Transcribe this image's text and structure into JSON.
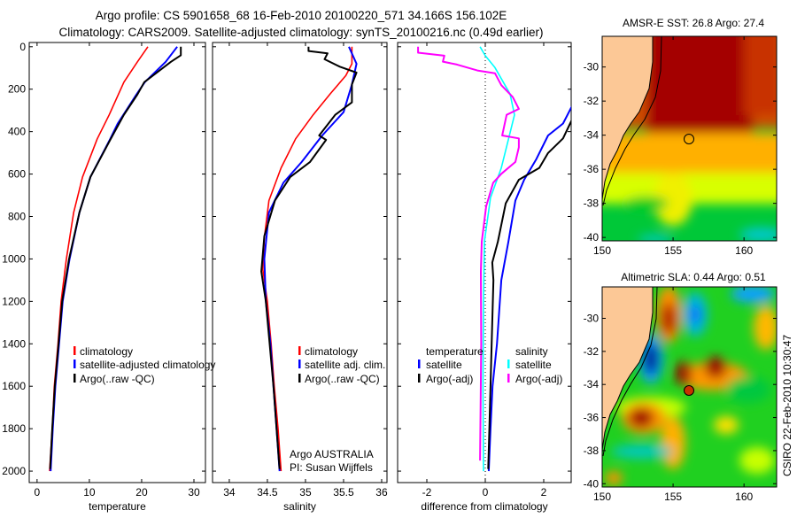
{
  "header": {
    "title_line1": "Argo profile: CS 5901658_68 16-Feb-2010 20100220_571 34.166S 156.102E",
    "title_line2": "Climatology: CARS2009. Satellite-adjusted climatology: synTS_20100216.nc (0.49d earlier)"
  },
  "credit": {
    "line1": "Argo AUSTRALIA",
    "line2": "PI: Susan Wijffels"
  },
  "timestamp": "CSIRO 22-Feb-2010 10:30:47",
  "colors": {
    "climatology": "#ff0000",
    "satellite": "#0000ff",
    "argo": "#000000",
    "sal_satellite": "#00ffff",
    "sal_argo": "#ff00ff",
    "land": "#fcc896"
  },
  "chart_data": [
    {
      "type": "line",
      "id": "temperature",
      "xlabel": "temperature",
      "ylabel": "",
      "xlim": [
        -1.5,
        32.2
      ],
      "ylim": [
        2054,
        -20
      ],
      "xticks": [
        0,
        10,
        20,
        30
      ],
      "xtick_labels": [
        "0",
        "10",
        "20",
        "30"
      ],
      "yticks": [
        0,
        200,
        400,
        600,
        800,
        1000,
        1200,
        1400,
        1600,
        1800,
        2000
      ],
      "ytick_labels": [
        "0",
        "200",
        "400",
        "600",
        "800",
        "1000",
        "1200",
        "1400",
        "1600",
        "1800",
        "2000"
      ],
      "legend": [
        "climatology",
        "satellite-adjusted climatology",
        "Argo(..raw -QC)"
      ],
      "series": [
        {
          "name": "climatology",
          "color": "#ff0000",
          "points": [
            [
              21.2,
              0
            ],
            [
              19.2,
              71
            ],
            [
              16.6,
              167
            ],
            [
              13.8,
              321
            ],
            [
              11.5,
              434
            ],
            [
              8.7,
              614
            ],
            [
              7.0,
              781
            ],
            [
              5.6,
              1002
            ],
            [
              4.6,
              1200
            ],
            [
              4.0,
              1400
            ],
            [
              3.3,
              1600
            ],
            [
              2.9,
              1800
            ],
            [
              2.4,
              2000
            ]
          ]
        },
        {
          "name": "satellite-adjusted climatology",
          "color": "#0000ff",
          "points": [
            [
              26.8,
              0
            ],
            [
              24.6,
              71
            ],
            [
              20.6,
              167
            ],
            [
              19.0,
              225
            ],
            [
              15.4,
              363
            ],
            [
              14.0,
              434
            ],
            [
              10.2,
              614
            ],
            [
              8.1,
              781
            ],
            [
              6.2,
              1002
            ],
            [
              4.9,
              1200
            ],
            [
              4.2,
              1400
            ],
            [
              3.5,
              1600
            ],
            [
              3.0,
              1800
            ],
            [
              2.6,
              2000
            ]
          ]
        },
        {
          "name": "Argo(..raw -QC)",
          "color": "#000000",
          "points": [
            [
              27.5,
              0
            ],
            [
              27.5,
              40
            ],
            [
              25.6,
              71
            ],
            [
              20.5,
              167
            ],
            [
              19.2,
              225
            ],
            [
              16.6,
              321
            ],
            [
              14.1,
              434
            ],
            [
              10.2,
              614
            ],
            [
              8.1,
              781
            ],
            [
              6.1,
              1002
            ],
            [
              4.8,
              1200
            ],
            [
              4.1,
              1400
            ],
            [
              3.4,
              1600
            ],
            [
              2.9,
              1800
            ],
            [
              2.5,
              1990
            ]
          ]
        }
      ]
    },
    {
      "type": "line",
      "id": "salinity",
      "xlabel": "salinity",
      "xlim": [
        33.78,
        36.07
      ],
      "ylim": [
        2054,
        -20
      ],
      "xticks": [
        34,
        34.5,
        35,
        35.5,
        36
      ],
      "xtick_labels": [
        "34",
        "34.5",
        "35",
        "35.5",
        "36"
      ],
      "legend": [
        "climatology",
        "satellite adj. clim.",
        "Argo(..raw -QC)"
      ],
      "series": [
        {
          "name": "climatology",
          "color": "#ff0000",
          "points": [
            [
              35.61,
              0
            ],
            [
              35.61,
              80
            ],
            [
              35.53,
              136
            ],
            [
              35.33,
              220
            ],
            [
              35.1,
              321
            ],
            [
              34.87,
              434
            ],
            [
              34.68,
              571
            ],
            [
              34.52,
              725
            ],
            [
              34.46,
              900
            ],
            [
              34.44,
              1050
            ],
            [
              34.5,
              1200
            ],
            [
              34.55,
              1400
            ],
            [
              34.59,
              1600
            ],
            [
              34.64,
              1800
            ],
            [
              34.68,
              2000
            ]
          ]
        },
        {
          "name": "satellite adj. clim.",
          "color": "#0000ff",
          "points": [
            [
              35.57,
              0
            ],
            [
              35.67,
              80
            ],
            [
              35.61,
              178
            ],
            [
              35.5,
              308
            ],
            [
              35.22,
              418
            ],
            [
              34.95,
              543
            ],
            [
              34.71,
              641
            ],
            [
              34.52,
              781
            ],
            [
              34.46,
              1000
            ],
            [
              34.48,
              1200
            ],
            [
              34.54,
              1400
            ],
            [
              34.58,
              1600
            ],
            [
              34.62,
              1800
            ],
            [
              34.66,
              2000
            ]
          ]
        },
        {
          "name": "Argo(..raw -QC)",
          "color": "#000000",
          "points": [
            [
              35.04,
              0
            ],
            [
              35.04,
              20
            ],
            [
              35.29,
              31
            ],
            [
              35.25,
              59
            ],
            [
              35.45,
              94
            ],
            [
              35.67,
              122
            ],
            [
              35.61,
              178
            ],
            [
              35.61,
              262
            ],
            [
              35.39,
              321
            ],
            [
              35.18,
              418
            ],
            [
              35.27,
              439
            ],
            [
              35.06,
              543
            ],
            [
              34.8,
              614
            ],
            [
              34.6,
              725
            ],
            [
              34.46,
              892
            ],
            [
              34.42,
              1059
            ],
            [
              34.48,
              1200
            ],
            [
              34.53,
              1400
            ],
            [
              34.58,
              1600
            ],
            [
              34.62,
              1800
            ],
            [
              34.66,
              1990
            ]
          ]
        }
      ]
    },
    {
      "type": "line",
      "id": "difference",
      "xlabel": "difference from climatology",
      "xlim": [
        -3.0,
        2.94
      ],
      "ylim": [
        2054,
        -20
      ],
      "xticks": [
        -2,
        0,
        2
      ],
      "xtick_labels": [
        "-2",
        "0",
        "2"
      ],
      "legend_temperature": {
        "title": "temperature",
        "entries": [
          "satellite",
          "Argo(-adj)"
        ]
      },
      "legend_salinity": {
        "title": "salinity",
        "entries": [
          "satellite",
          "Argo(-adj)"
        ]
      },
      "series": [
        {
          "name": "temperature satellite",
          "color": "#0000ff",
          "points": [
            [
              3.6,
              150
            ],
            [
              3.0,
              271
            ],
            [
              2.66,
              362
            ],
            [
              2.15,
              418
            ],
            [
              1.75,
              529
            ],
            [
              1.33,
              627
            ],
            [
              1.03,
              725
            ],
            [
              0.79,
              919
            ],
            [
              0.55,
              1100
            ],
            [
              0.4,
              1400
            ],
            [
              0.25,
              1600
            ],
            [
              0.18,
              1800
            ],
            [
              0.12,
              2000
            ]
          ]
        },
        {
          "name": "temperature Argo(-adj)",
          "color": "#000000",
          "points": [
            [
              3.6,
              250
            ],
            [
              3.0,
              334
            ],
            [
              2.66,
              432
            ],
            [
              2.15,
              501
            ],
            [
              1.85,
              571
            ],
            [
              1.15,
              627
            ],
            [
              0.7,
              738
            ],
            [
              0.43,
              919
            ],
            [
              0.24,
              1017
            ],
            [
              0.28,
              1100
            ],
            [
              0.22,
              1400
            ],
            [
              0.18,
              1600
            ],
            [
              0.14,
              1800
            ],
            [
              0.1,
              1990
            ]
          ]
        },
        {
          "name": "salinity satellite",
          "color": "#00ffff",
          "points": [
            [
              -0.18,
              0
            ],
            [
              0.0,
              42
            ],
            [
              0.33,
              98
            ],
            [
              0.85,
              223
            ],
            [
              1.0,
              321
            ],
            [
              0.8,
              432
            ],
            [
              0.55,
              571
            ],
            [
              0.18,
              711
            ],
            [
              -0.03,
              919
            ],
            [
              -0.06,
              1200
            ],
            [
              -0.08,
              1600
            ],
            [
              -0.06,
              2000
            ]
          ]
        },
        {
          "name": "salinity Argo(-adj)",
          "color": "#ff00ff",
          "points": [
            [
              -2.3,
              0
            ],
            [
              -2.3,
              28
            ],
            [
              -1.4,
              42
            ],
            [
              -1.45,
              70
            ],
            [
              -0.97,
              84
            ],
            [
              -0.27,
              112
            ],
            [
              0.33,
              125
            ],
            [
              0.55,
              181
            ],
            [
              0.94,
              237
            ],
            [
              1.15,
              293
            ],
            [
              0.73,
              321
            ],
            [
              0.58,
              418
            ],
            [
              1.15,
              432
            ],
            [
              1.15,
              474
            ],
            [
              1.03,
              543
            ],
            [
              0.55,
              599
            ],
            [
              0.27,
              641
            ],
            [
              0.03,
              752
            ],
            [
              -0.12,
              919
            ],
            [
              -0.15,
              1059
            ],
            [
              -0.14,
              1400
            ],
            [
              -0.16,
              1700
            ],
            [
              -0.18,
              1950
            ]
          ]
        }
      ]
    },
    {
      "type": "heatmap",
      "id": "sst-map",
      "title": "AMSR-E SST: 26.8 Argo: 27.4",
      "xlim": [
        150,
        162.3
      ],
      "ylim": [
        -40.2,
        -28.2
      ],
      "xticks": [
        150,
        155,
        160
      ],
      "xtick_labels": [
        "150",
        "155",
        "160"
      ],
      "yticks": [
        -30,
        -32,
        -34,
        -36,
        -38,
        -40
      ],
      "ytick_labels": [
        "-30",
        "-32",
        "-34",
        "-36",
        "-38",
        "-40"
      ],
      "marker": {
        "lon": 156.102,
        "lat": -34.166
      }
    },
    {
      "type": "heatmap",
      "id": "sla-map",
      "title": "Altimetric SLA: 0.44 Argo: 0.51",
      "xlim": [
        150,
        162.3
      ],
      "ylim": [
        -40.2,
        -28.1
      ],
      "xticks": [
        150,
        155,
        160
      ],
      "xtick_labels": [
        "150",
        "155",
        "160"
      ],
      "yticks": [
        -30,
        -32,
        -34,
        -36,
        -38,
        -40
      ],
      "ytick_labels": [
        "-30",
        "-32",
        "-34",
        "-36",
        "-38",
        "-40"
      ],
      "marker": {
        "lon": 156.102,
        "lat": -34.166
      }
    }
  ]
}
